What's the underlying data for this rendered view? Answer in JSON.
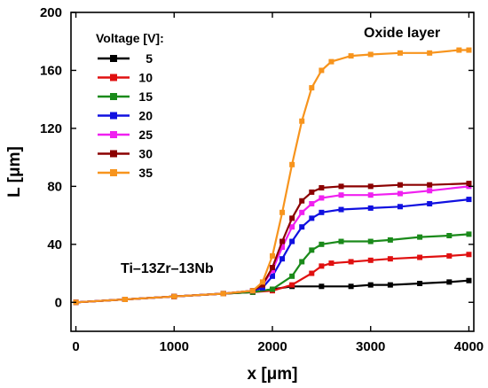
{
  "chart_data": {
    "type": "line",
    "xlabel": "x [μm]",
    "ylabel": "L [μm]",
    "xlim": [
      -50,
      4050
    ],
    "ylim": [
      -20,
      200
    ],
    "x_ticks": [
      0,
      1000,
      2000,
      3000,
      4000
    ],
    "y_ticks": [
      0,
      40,
      80,
      120,
      160,
      200
    ],
    "legend_title": "Voltage [V]:",
    "legend_position": "top-left",
    "annotations": [
      "Oxide layer",
      "Ti–13Zr–13Nb"
    ],
    "grid": false,
    "series": [
      {
        "name": "5",
        "color": "#000000",
        "x": [
          0,
          500,
          1000,
          1500,
          1800,
          2000,
          2200,
          2500,
          2800,
          3000,
          3200,
          3500,
          3800,
          4000
        ],
        "y": [
          0,
          2,
          4,
          6,
          7,
          9,
          11,
          11,
          11,
          12,
          12,
          13,
          14,
          15
        ]
      },
      {
        "name": "10",
        "color": "#e01010",
        "x": [
          0,
          500,
          1000,
          1500,
          1800,
          2000,
          2200,
          2400,
          2500,
          2600,
          2800,
          3000,
          3200,
          3500,
          3800,
          4000
        ],
        "y": [
          0,
          2,
          4,
          6,
          7,
          8,
          12,
          20,
          25,
          27,
          28,
          29,
          30,
          31,
          32,
          33
        ]
      },
      {
        "name": "15",
        "color": "#1a8a1a",
        "x": [
          0,
          500,
          1000,
          1500,
          1800,
          2000,
          2200,
          2300,
          2400,
          2500,
          2700,
          3000,
          3200,
          3500,
          3800,
          4000
        ],
        "y": [
          0,
          2,
          4,
          6,
          7,
          9,
          18,
          28,
          36,
          40,
          42,
          42,
          43,
          45,
          46,
          47
        ]
      },
      {
        "name": "20",
        "color": "#1010e0",
        "x": [
          0,
          500,
          1000,
          1500,
          1800,
          1900,
          2000,
          2100,
          2200,
          2300,
          2400,
          2500,
          2700,
          3000,
          3300,
          3600,
          4000
        ],
        "y": [
          0,
          2,
          4,
          6,
          8,
          10,
          18,
          30,
          42,
          52,
          58,
          62,
          64,
          65,
          66,
          68,
          71
        ]
      },
      {
        "name": "25",
        "color": "#f020f0",
        "x": [
          0,
          500,
          1000,
          1500,
          1800,
          1900,
          2000,
          2100,
          2200,
          2300,
          2400,
          2500,
          2700,
          3000,
          3300,
          3600,
          4000
        ],
        "y": [
          0,
          2,
          4,
          6,
          8,
          12,
          22,
          38,
          52,
          62,
          68,
          72,
          74,
          74,
          75,
          77,
          80
        ]
      },
      {
        "name": "30",
        "color": "#8b0000",
        "x": [
          0,
          500,
          1000,
          1500,
          1800,
          1900,
          2000,
          2100,
          2200,
          2300,
          2400,
          2500,
          2700,
          3000,
          3300,
          3600,
          4000
        ],
        "y": [
          0,
          2,
          4,
          6,
          8,
          12,
          24,
          42,
          58,
          70,
          76,
          79,
          80,
          80,
          81,
          81,
          82
        ]
      },
      {
        "name": "35",
        "color": "#f7941d",
        "x": [
          0,
          500,
          1000,
          1500,
          1800,
          1900,
          2000,
          2100,
          2200,
          2300,
          2400,
          2500,
          2600,
          2800,
          3000,
          3300,
          3600,
          3900,
          4000
        ],
        "y": [
          0,
          2,
          4,
          6,
          8,
          14,
          32,
          62,
          95,
          125,
          148,
          160,
          166,
          170,
          171,
          172,
          172,
          174,
          174
        ]
      }
    ]
  }
}
